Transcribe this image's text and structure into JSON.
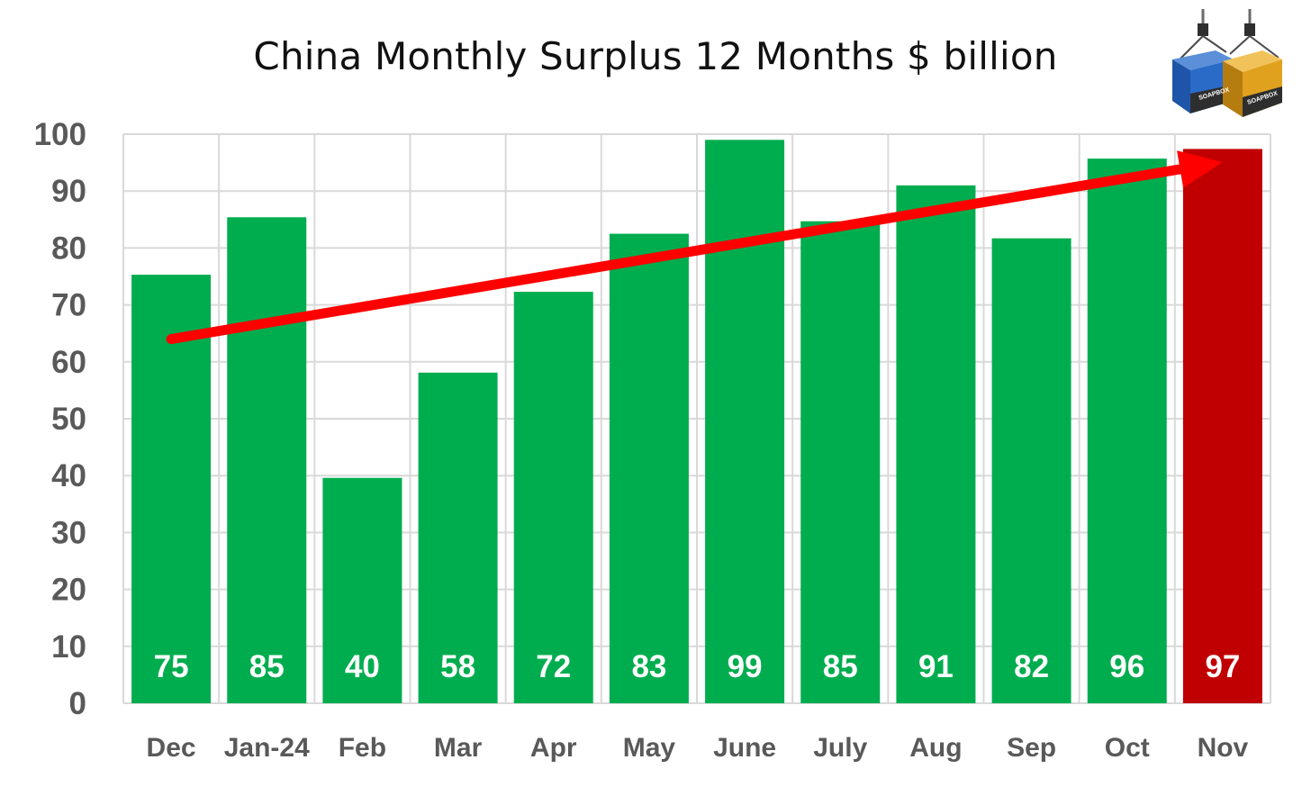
{
  "chart_data": {
    "type": "bar",
    "title": "China Monthly Surplus 12 Months $ billion",
    "categories": [
      "Dec",
      "Jan-24",
      "Feb",
      "Mar",
      "Apr",
      "May",
      "June",
      "July",
      "Aug",
      "Sep",
      "Oct",
      "Nov"
    ],
    "values": [
      75,
      85,
      40,
      58,
      72,
      83,
      99,
      85,
      91,
      82,
      96,
      97
    ],
    "data_labels": [
      "75",
      "85",
      "40",
      "58",
      "72",
      "83",
      "99",
      "85",
      "91",
      "82",
      "96",
      "97"
    ],
    "bar_heights": [
      75.3,
      85.4,
      39.6,
      58.1,
      72.3,
      82.5,
      99.0,
      84.7,
      91.0,
      81.7,
      95.7,
      97.4
    ],
    "highlight_index": 11,
    "colors": {
      "bar": "#00AD4E",
      "highlight": "#C00000",
      "trend_arrow": "#FF0000",
      "grid": "#D9D9D9",
      "tick_label": "#595959",
      "data_label": "#FFFFFF"
    },
    "ylim": [
      0,
      100
    ],
    "yticks": [
      0,
      10,
      20,
      30,
      40,
      50,
      60,
      70,
      80,
      90,
      100
    ],
    "xlabel": "",
    "ylabel": "",
    "grid": true,
    "legend": "none",
    "trend_arrow": {
      "from": {
        "category": "Dec",
        "value": 64
      },
      "to": {
        "category": "Nov",
        "value": 97
      }
    }
  },
  "logo": {
    "label_left": "SOAPBOX",
    "label_right": "SOAPBOX",
    "colors": {
      "left": "#2A6BC8",
      "right": "#E0A21E",
      "body": "#333333"
    }
  }
}
